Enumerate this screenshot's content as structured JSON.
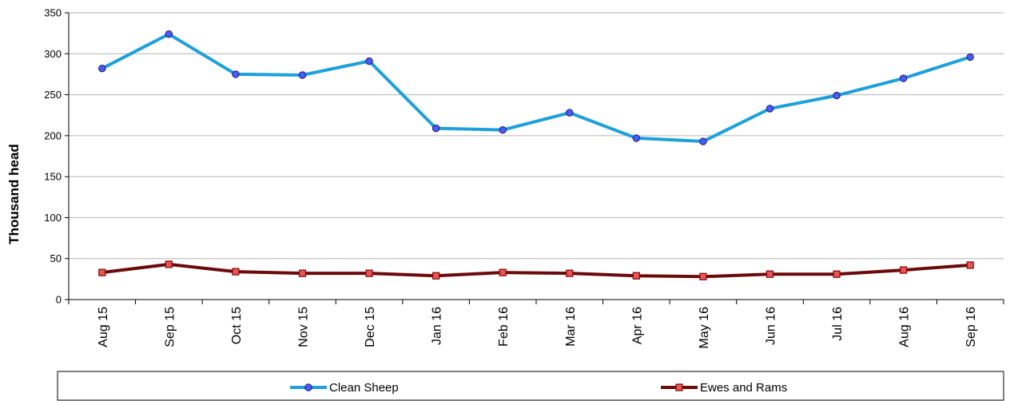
{
  "chart_data": {
    "type": "line",
    "title": "",
    "xlabel": "",
    "ylabel": "Thousand head",
    "ylim": [
      0,
      350
    ],
    "yticks": [
      0,
      50,
      100,
      150,
      200,
      250,
      300,
      350
    ],
    "grid": true,
    "legend_position": "bottom",
    "categories": [
      "Aug 15",
      "Sep 15",
      "Oct 15",
      "Nov 15",
      "Dec 15",
      "Jan 16",
      "Feb 16",
      "Mar 16",
      "Apr 16",
      "May 16",
      "Jun 16",
      "Jul 16",
      "Aug 16",
      "Sep 16"
    ],
    "series": [
      {
        "name": "Clean Sheep",
        "color": "#1EA0DA",
        "marker": "circle",
        "marker_fill": "#4A5BFF",
        "values": [
          282,
          324,
          275,
          274,
          291,
          209,
          207,
          228,
          197,
          193,
          233,
          249,
          270,
          296
        ]
      },
      {
        "name": "Ewes and Rams",
        "color": "#6B0A0A",
        "marker": "square",
        "marker_fill": "#E05858",
        "values": [
          33,
          43,
          34,
          32,
          32,
          29,
          33,
          32,
          29,
          28,
          31,
          31,
          36,
          42
        ]
      }
    ]
  }
}
